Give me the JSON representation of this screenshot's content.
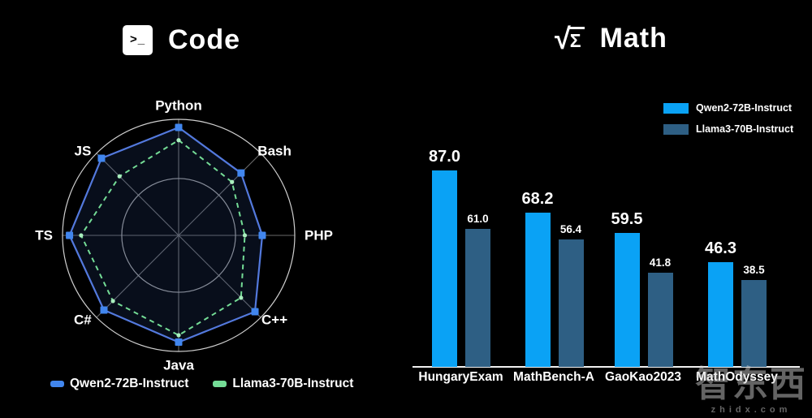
{
  "panels": {
    "code": {
      "title": "Code",
      "icon_glyph": ">_"
    },
    "math": {
      "title": "Math",
      "icon_sqrt": "√",
      "icon_sigma": "Σ"
    }
  },
  "watermark": {
    "logo_text": "智东西",
    "site_text": "zhidx.com"
  },
  "colors": {
    "background": "#000000",
    "bar_qwen2": "#0aa2f5",
    "bar_llama3": "#2e5f84",
    "radar_qwen2_line": "#5379dd",
    "radar_qwen2_marker": "#4186ee",
    "radar_llama3_line": "#74dc96",
    "radar_llama3_marker": "#a9efbe",
    "ring": "#cfcfcf",
    "spoke": "#6a6a6a",
    "axis_line": "#f0f0f0",
    "text": "#ffffff"
  },
  "chart_data": [
    {
      "type": "radar",
      "panel": "Code",
      "categories": [
        "Python",
        "Bash",
        "PHP",
        "C++",
        "Java",
        "C#",
        "TS",
        "JS"
      ],
      "series": [
        {
          "name": "Qwen2-72B-Instruct",
          "style": "solid",
          "color": "#5379dd",
          "marker_color": "#4186ee",
          "values": [
            93,
            76,
            72,
            93,
            92,
            91,
            94,
            94
          ]
        },
        {
          "name": "Llama3-70B-Instruct",
          "style": "dashed",
          "color": "#74dc96",
          "marker_color": "#a9efbe",
          "values": [
            82,
            65,
            57,
            76,
            86,
            80,
            84,
            72
          ]
        }
      ],
      "value_scale": "percent of outer ring radius; radial axis is unlabeled, values estimated from pixels",
      "rings_percent": [
        49,
        100
      ],
      "grid": true,
      "legend_position": "bottom-left"
    },
    {
      "type": "bar",
      "panel": "Math",
      "categories": [
        "HungaryExam",
        "MathBench-A",
        "GaoKao2023",
        "MathOdyssey"
      ],
      "series": [
        {
          "name": "Qwen2-72B-Instruct",
          "color": "#0aa2f5",
          "values": [
            87.0,
            68.2,
            59.5,
            46.3
          ],
          "labels": [
            "87.0",
            "68.2",
            "59.5",
            "46.3"
          ]
        },
        {
          "name": "Llama3-70B-Instruct",
          "color": "#2e5f84",
          "values": [
            61.0,
            56.4,
            41.8,
            38.5
          ],
          "labels": [
            "61.0",
            "56.4",
            "41.8",
            "38.5"
          ]
        }
      ],
      "ylim": [
        0,
        100
      ],
      "grid": false,
      "legend_position": "top-right",
      "baseline_axis": true
    }
  ]
}
